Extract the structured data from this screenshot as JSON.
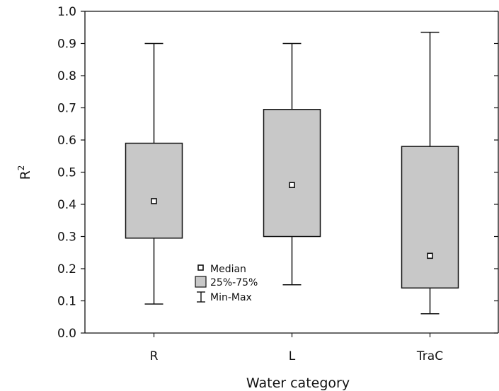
{
  "chart_data": {
    "type": "boxplot",
    "categories": [
      "R",
      "L",
      "TraC"
    ],
    "boxes": [
      {
        "category": "R",
        "min": 0.09,
        "q1": 0.295,
        "median": 0.41,
        "q3": 0.59,
        "max": 0.9
      },
      {
        "category": "L",
        "min": 0.15,
        "q1": 0.3,
        "median": 0.46,
        "q3": 0.695,
        "max": 0.9
      },
      {
        "category": "TraC",
        "min": 0.06,
        "q1": 0.14,
        "median": 0.24,
        "q3": 0.58,
        "max": 0.935
      }
    ],
    "xlabel": "Water category",
    "ylabel": "R",
    "ylabel_superscript": "2",
    "ylim": [
      0.0,
      1.0
    ],
    "yticks": [
      "0.0",
      "0.1",
      "0.2",
      "0.3",
      "0.4",
      "0.5",
      "0.6",
      "0.7",
      "0.8",
      "0.9",
      "1.0"
    ],
    "legend": {
      "position": "bottom-left",
      "entries": [
        {
          "symbol": "square-marker",
          "label": "Median"
        },
        {
          "symbol": "box",
          "label": "25%-75%"
        },
        {
          "symbol": "whisker",
          "label": "Min-Max"
        }
      ]
    },
    "colors": {
      "box_fill": "#c8c8c8",
      "line": "#111111",
      "marker_fill": "#ffffff"
    },
    "grid": false
  }
}
